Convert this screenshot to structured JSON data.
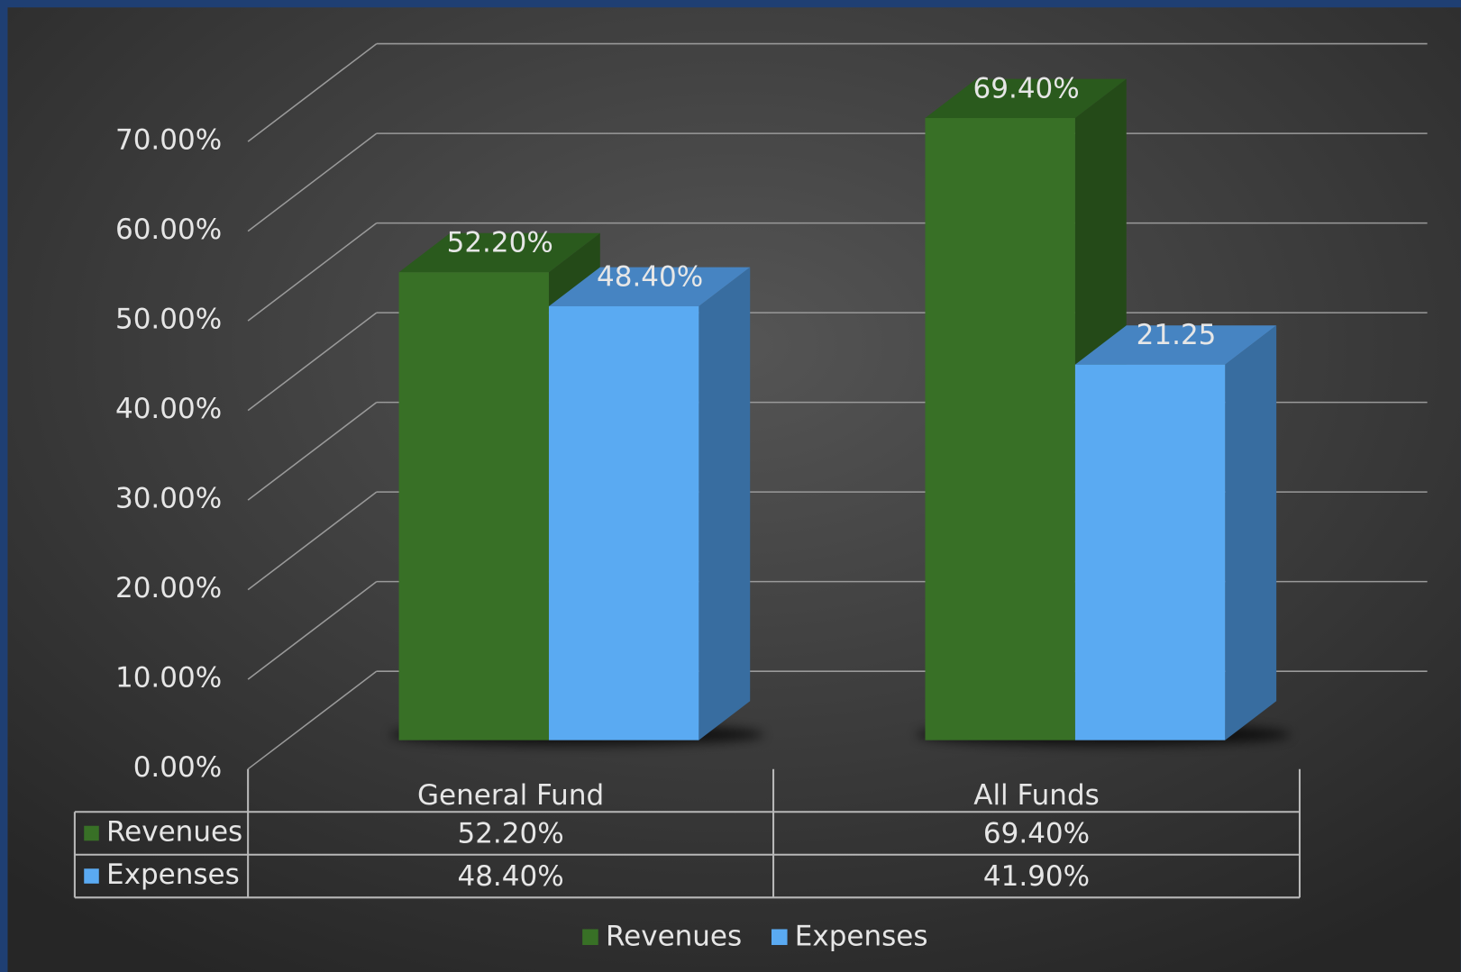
{
  "chart_data": {
    "type": "bar3d",
    "categories": [
      "General Fund",
      "All Funds"
    ],
    "series": [
      {
        "name": "Revenues",
        "color": "#387026",
        "values": [
          52.2,
          69.4
        ],
        "value_labels": [
          "52.20%",
          "69.40%"
        ]
      },
      {
        "name": "Expenses",
        "color": "#5aaaf2",
        "values": [
          48.4,
          41.9
        ],
        "value_labels": [
          "48.40%",
          "41.90%"
        ]
      }
    ],
    "annotations": [
      "21.25"
    ],
    "ylim": [
      0,
      70
    ],
    "yticks": [
      {
        "value": 0,
        "label": "0.00%"
      },
      {
        "value": 10,
        "label": "10.00%"
      },
      {
        "value": 20,
        "label": "20.00%"
      },
      {
        "value": 30,
        "label": "30.00%"
      },
      {
        "value": 40,
        "label": "40.00%"
      },
      {
        "value": 50,
        "label": "50.00%"
      },
      {
        "value": 60,
        "label": "60.00%"
      },
      {
        "value": 70,
        "label": "70.00%"
      }
    ],
    "grid": true,
    "legend": "bottom",
    "data_table": true
  }
}
